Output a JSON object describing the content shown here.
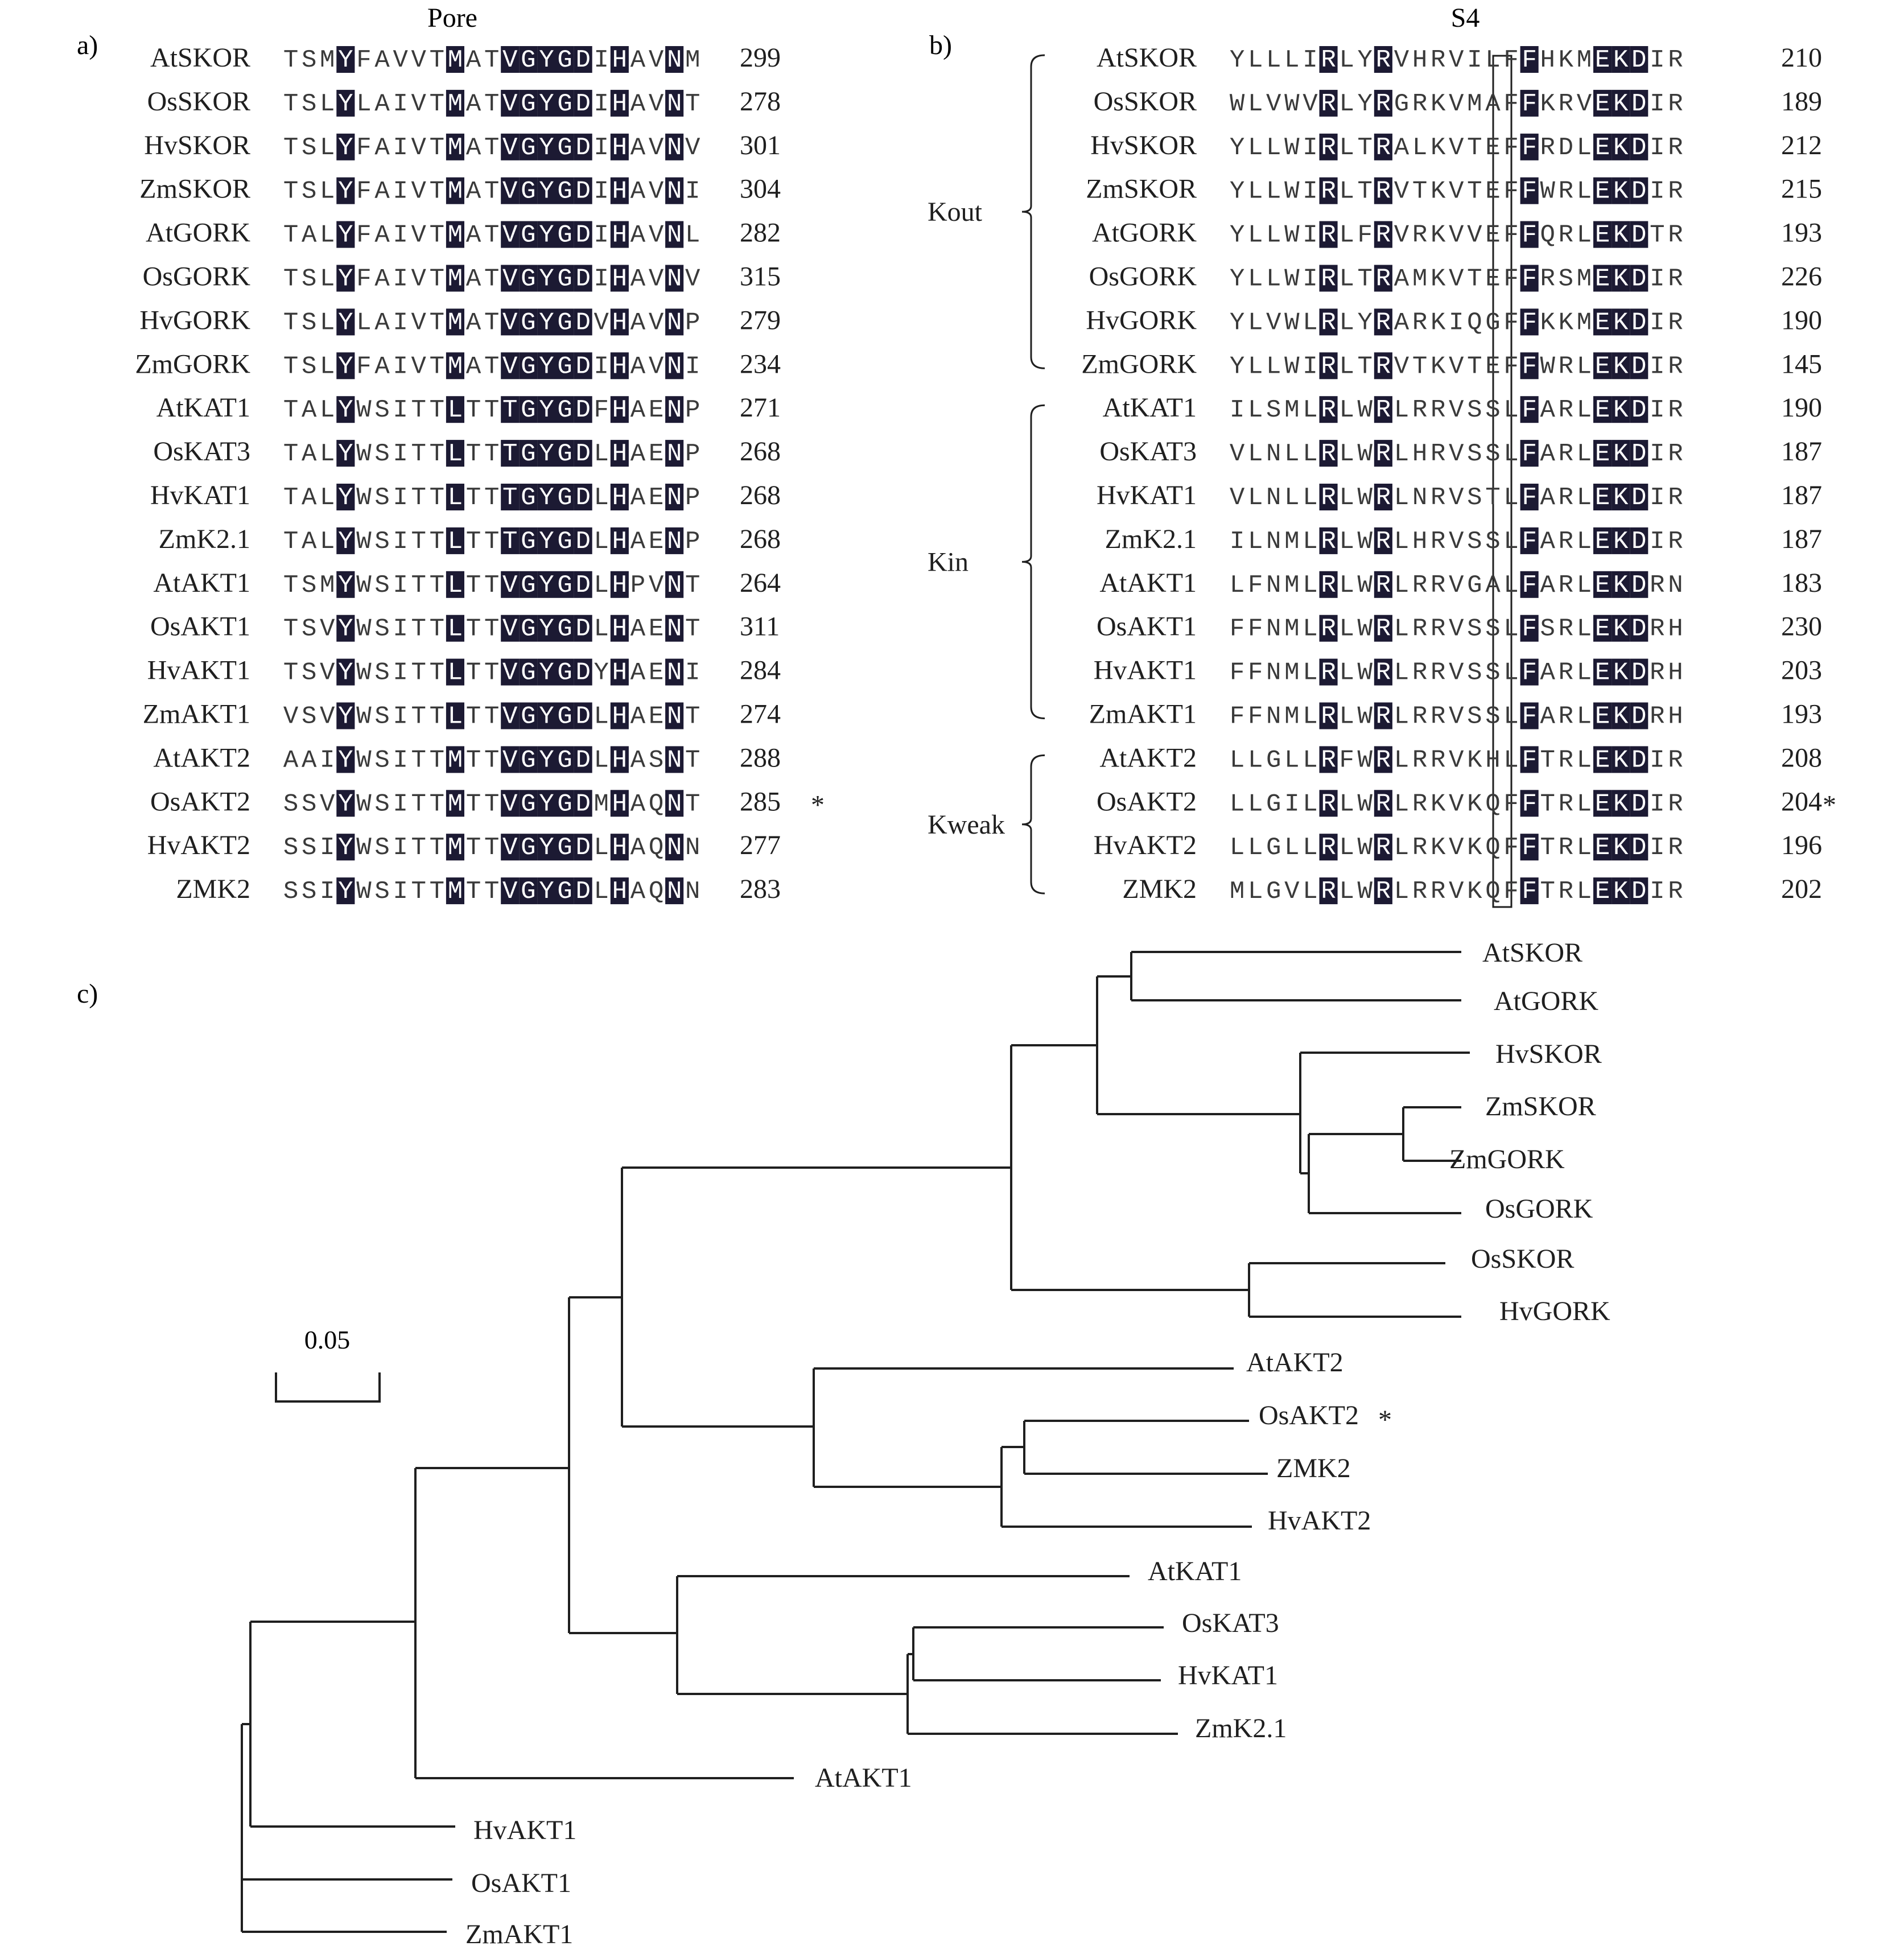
{
  "colors": {
    "ink": "#1f1f1f",
    "highlight_bg": "#1c1a33",
    "highlight_fg": "#ffffff",
    "seq_fg": "#3a3a3a"
  },
  "panel_a": {
    "label": "a)",
    "title": "Pore",
    "rows": [
      {
        "name": "AtSKOR",
        "seq": "TSMYFAVVTMATVGYGDIHAVNM",
        "num": "299"
      },
      {
        "name": "OsSKOR",
        "seq": "TSLYLAIVTMATVGYGDIHAVNT",
        "num": "278"
      },
      {
        "name": "HvSKOR",
        "seq": "TSLYFAIVTMATVGYGDIHAVNV",
        "num": "301"
      },
      {
        "name": "ZmSKOR",
        "seq": "TSLYFAIVTMATVGYGDIHAVNI",
        "num": "304"
      },
      {
        "name": "AtGORK",
        "seq": "TALYFAIVTMATVGYGDIHAVNL",
        "num": "282"
      },
      {
        "name": "OsGORK",
        "seq": "TSLYFAIVTMATVGYGDIHAVNV",
        "num": "315"
      },
      {
        "name": "HvGORK",
        "seq": "TSLYLAIVTMATVGYGDVHAVNP",
        "num": "279"
      },
      {
        "name": "ZmGORK",
        "seq": "TSLYFAIVTMATVGYGDIHAVNI",
        "num": "234"
      },
      {
        "name": "AtKAT1",
        "seq": "TALYWSITTLTTTGYGDFHAENP",
        "num": "271"
      },
      {
        "name": "OsKAT3",
        "seq": "TALYWSITTLTTTGYGDLHAENP",
        "num": "268"
      },
      {
        "name": "HvKAT1",
        "seq": "TALYWSITTLTTTGYGDLHAENP",
        "num": "268"
      },
      {
        "name": "ZmK2.1",
        "seq": "TALYWSITTLTTTGYGDLHAENP",
        "num": "268"
      },
      {
        "name": "AtAKT1",
        "seq": "TSMYWSITTLTTVGYGDLHPVNT",
        "num": "264"
      },
      {
        "name": "OsAKT1",
        "seq": "TSVYWSITTLTTVGYGDLHAENT",
        "num": "311"
      },
      {
        "name": "HvAKT1",
        "seq": "TSVYWSITTLTTVGYGDYHAENI",
        "num": "284"
      },
      {
        "name": "ZmAKT1",
        "seq": "VSVYWSITTLTTVGYGDLHAENT",
        "num": "274"
      },
      {
        "name": "AtAKT2",
        "seq": "AAIYWSITTMTTVGYGDLHASNT",
        "num": "288"
      },
      {
        "name": "OsAKT2",
        "seq": "SSVYWSITTMTTVGYGDMHAQNT",
        "num": "285",
        "star": "*"
      },
      {
        "name": "HvAKT2",
        "seq": "SSIYWSITTMTTVGYGDLHAQNN",
        "num": "277"
      },
      {
        "name": "ZMK2",
        "seq": "SSIYWSITTMTTVGYGDLHAQNN",
        "num": "283"
      }
    ]
  },
  "panel_b": {
    "label": "b)",
    "title": "S4",
    "groups": [
      {
        "label": "Kout",
        "from": 0,
        "to": 7
      },
      {
        "label": "Kin",
        "from": 8,
        "to": 15
      },
      {
        "label": "Kweak",
        "from": 16,
        "to": 19
      }
    ],
    "rows": [
      {
        "name": "AtSKOR",
        "seq": "YLLLIRLYRVHRVILFFHKMEKDIR",
        "num": "210"
      },
      {
        "name": "OsSKOR",
        "seq": "WLVWVRLYRGRKVMAFFKRVEKDIR",
        "num": "189"
      },
      {
        "name": "HvSKOR",
        "seq": "YLLWIRLTRALKVTEFFRDLEKDIR",
        "num": "212"
      },
      {
        "name": "ZmSKOR",
        "seq": "YLLWIRLTRVTKVTEFFWRLEKDIR",
        "num": "215"
      },
      {
        "name": "AtGORK",
        "seq": "YLLWIRLFRVRKVVEFFQRLEKDTR",
        "num": "193"
      },
      {
        "name": "OsGORK",
        "seq": "YLLWIRLTRAMKVTEFFRSMEKDIR",
        "num": "226"
      },
      {
        "name": "HvGORK",
        "seq": "YLVWLRLYRARKIQGFFKKMEKDIR",
        "num": "190"
      },
      {
        "name": "ZmGORK",
        "seq": "YLLWIRLTRVTKVTEFFWRLEKDIR",
        "num": "145"
      },
      {
        "name": "AtKAT1",
        "seq": "ILSMLRLWRLRRVSSLFARLEKDIR",
        "num": "190"
      },
      {
        "name": "OsKAT3",
        "seq": "VLNLLRLWRLHRVSSLFARLEKDIR",
        "num": "187"
      },
      {
        "name": "HvKAT1",
        "seq": "VLNLLRLWRLNRVSTLFARLEKDIR",
        "num": "187"
      },
      {
        "name": "ZmK2.1",
        "seq": "ILNMLRLWRLHRVSSLFARLEKDIR",
        "num": "187"
      },
      {
        "name": "AtAKT1",
        "seq": "LFNMLRLWRLRRVGALFARLEKDRN",
        "num": "183"
      },
      {
        "name": "OsAKT1",
        "seq": "FFNMLRLWRLRRVSSLFSRLEKDRH",
        "num": "230"
      },
      {
        "name": "HvAKT1",
        "seq": "FFNMLRLWRLRRVSSLFARLEKDRH",
        "num": "203"
      },
      {
        "name": "ZmAKT1",
        "seq": "FFNMLRLWRLRRVSSLFARLEKDRH",
        "num": "193"
      },
      {
        "name": "AtAKT2",
        "seq": "LLGLLRFWRLRRVKHLFTRLEKDIR",
        "num": "208"
      },
      {
        "name": "OsAKT2",
        "seq": "LLGILRLWRLRKVKQFFTRLEKDIR",
        "num": "204",
        "star": "*"
      },
      {
        "name": "HvAKT2",
        "seq": "LLGLLRLWRLRKVKQFFTRLEKDIR",
        "num": "196"
      },
      {
        "name": "ZMK2",
        "seq": "MLGVLRLWRLRRVKQFFTRLEKDIR",
        "num": "202"
      }
    ]
  },
  "panel_c": {
    "label": "c)",
    "scale_label": "0.05",
    "leaves": [
      {
        "name": "AtSKOR"
      },
      {
        "name": "AtGORK"
      },
      {
        "name": "HvSKOR"
      },
      {
        "name": "ZmSKOR"
      },
      {
        "name": "ZmGORK"
      },
      {
        "name": "OsGORK"
      },
      {
        "name": "OsSKOR"
      },
      {
        "name": "HvGORK"
      },
      {
        "name": "AtAKT2"
      },
      {
        "name": "OsAKT2",
        "star": "*"
      },
      {
        "name": "ZMK2"
      },
      {
        "name": "HvAKT2"
      },
      {
        "name": "AtKAT1"
      },
      {
        "name": "OsKAT3"
      },
      {
        "name": "HvKAT1"
      },
      {
        "name": "ZmK2.1"
      },
      {
        "name": "AtAKT1"
      },
      {
        "name": "HvAKT1"
      },
      {
        "name": "OsAKT1"
      },
      {
        "name": "ZmAKT1"
      }
    ]
  }
}
